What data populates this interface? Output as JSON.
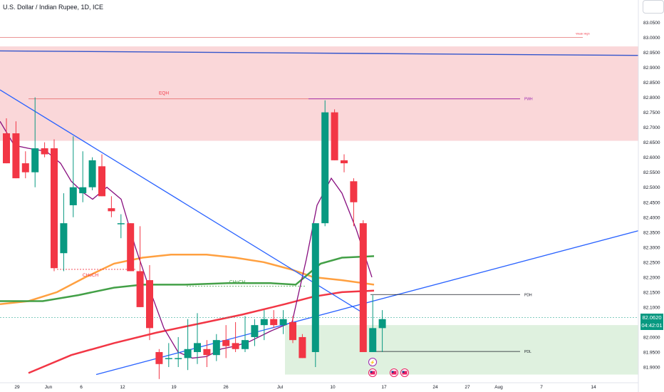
{
  "title": "U.S. Dollar / Indian Rupee, 1D, ICE",
  "last_price": {
    "value": "82.0620",
    "countdown": "04:42:01"
  },
  "chart_data": {
    "type": "candlestick",
    "ylim": [
      81.86,
      83.07
    ],
    "y_ticks": [
      "83.0500",
      "83.0000",
      "82.9500",
      "82.9000",
      "82.8500",
      "82.8000",
      "82.7500",
      "82.7000",
      "82.6500",
      "82.6000",
      "82.5500",
      "82.5000",
      "82.4500",
      "82.4000",
      "82.3500",
      "82.3000",
      "82.2500",
      "82.2000",
      "82.1500",
      "82.1000",
      "82.0500",
      "82.0000",
      "81.9500",
      "81.9000"
    ],
    "x_ticks": [
      "29",
      "Jun",
      "6",
      "12",
      "19",
      "26",
      "Jul",
      "10",
      "17",
      "24",
      "27",
      "Aug",
      "7",
      "14"
    ],
    "candles": [
      [
        82.68,
        82.73,
        82.58,
        82.58
      ],
      [
        82.68,
        82.72,
        82.53,
        82.53
      ],
      [
        82.58,
        82.62,
        82.53,
        82.55
      ],
      [
        82.55,
        82.8,
        82.5,
        82.63
      ],
      [
        82.63,
        82.65,
        82.6,
        82.61
      ],
      [
        82.63,
        82.66,
        82.22,
        82.23
      ],
      [
        82.28,
        82.48,
        82.22,
        82.38
      ],
      [
        82.44,
        82.67,
        82.4,
        82.5
      ],
      [
        82.48,
        82.62,
        82.45,
        82.5
      ],
      [
        82.5,
        82.6,
        82.49,
        82.59
      ],
      [
        82.57,
        82.61,
        82.47,
        82.47
      ],
      [
        82.43,
        82.47,
        82.4,
        82.42
      ],
      [
        82.38,
        82.41,
        82.33,
        82.38
      ],
      [
        82.38,
        82.38,
        82.22,
        82.22
      ],
      [
        82.22,
        82.37,
        82.1,
        82.1
      ],
      [
        82.19,
        82.24,
        81.99,
        82.03
      ],
      [
        81.95,
        81.96,
        81.86,
        81.91
      ],
      [
        81.93,
        81.98,
        81.9,
        81.93
      ],
      [
        81.93,
        82.0,
        81.9,
        81.93
      ],
      [
        81.93,
        82.06,
        81.89,
        81.96
      ],
      [
        81.95,
        82.08,
        81.91,
        81.98
      ],
      [
        81.96,
        81.99,
        81.9,
        81.94
      ],
      [
        81.94,
        82.01,
        81.92,
        81.99
      ],
      [
        81.99,
        82.04,
        81.93,
        81.97
      ],
      [
        81.98,
        82.05,
        81.95,
        81.96
      ],
      [
        81.96,
        82.07,
        81.95,
        81.99
      ],
      [
        82.0,
        82.06,
        81.97,
        82.04
      ],
      [
        82.04,
        82.09,
        81.99,
        82.06
      ],
      [
        82.06,
        82.09,
        82.03,
        82.04
      ],
      [
        82.04,
        82.09,
        82.01,
        82.06
      ],
      [
        82.05,
        82.07,
        81.98,
        81.99
      ],
      [
        82.0,
        82.01,
        81.93,
        81.93
      ],
      [
        81.95,
        82.38,
        81.9,
        82.38
      ],
      [
        82.38,
        82.79,
        82.37,
        82.75
      ],
      [
        82.75,
        82.76,
        82.59,
        82.59
      ],
      [
        82.59,
        82.61,
        82.55,
        82.58
      ],
      [
        82.52,
        82.53,
        82.37,
        82.45
      ],
      [
        82.38,
        82.39,
        81.95,
        81.95
      ],
      [
        81.95,
        82.14,
        81.95,
        82.03
      ],
      [
        82.03,
        82.09,
        81.95,
        82.06
      ]
    ],
    "labels": {
      "eqh": "EQH",
      "pwh": "PWH",
      "weak_high": "Weak High",
      "choch_1": "CHoCH",
      "choch_2": "CHoCH",
      "pdh": "PDH",
      "pdl": "PDL"
    }
  },
  "colors": {
    "up": "#089981",
    "down": "#f23645",
    "zone_red": "#f8c9cc",
    "zone_green": "#dcf0dc",
    "ma_orange": "#ffa040",
    "ma_green": "#43a047",
    "ma_red": "#f23645",
    "trend_blue": "#2962ff",
    "purple": "#880e7f"
  }
}
